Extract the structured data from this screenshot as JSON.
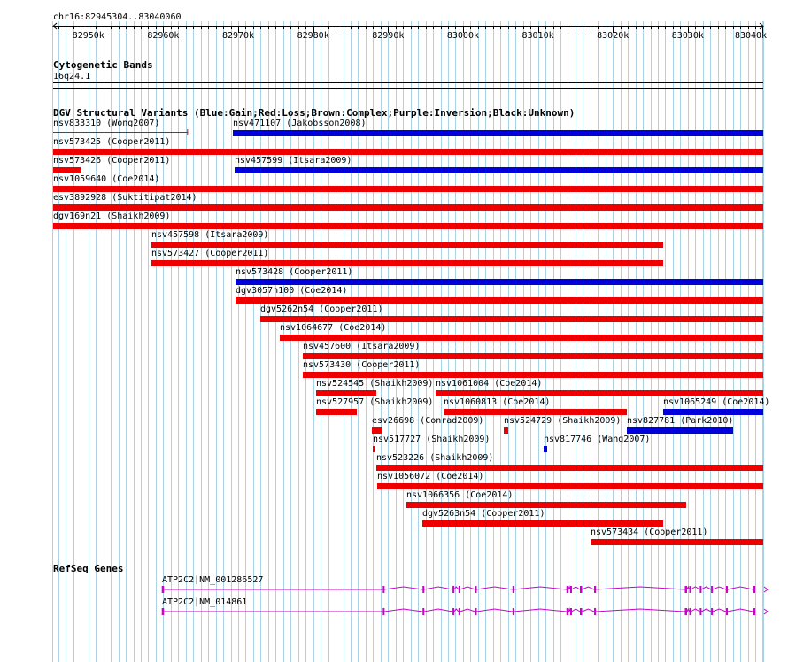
{
  "colors": {
    "gain": "#0000dd",
    "loss": "#ee0000",
    "grid": "#aad4e6",
    "gene": "#cc00cc",
    "background": "#ffffff",
    "text": "#000000"
  },
  "ruler": {
    "range_label": "chr16:82945304..83040060",
    "start": 82945304,
    "end": 83040060,
    "ticks": [
      "82950k",
      "82960k",
      "82970k",
      "82980k",
      "82990k",
      "83000k",
      "83010k",
      "83020k",
      "83030k",
      "83040k"
    ]
  },
  "cytoband": {
    "title": "Cytogenetic Bands",
    "band": "16q24.1"
  },
  "dgv": {
    "title": "DGV Structural Variants (Blue:Gain;Red:Loss;Brown:Complex;Purple:Inversion;Black:Unknown)",
    "variants": [
      {
        "label": "nsv833310 (Wong2007)",
        "type": "loss_whisker",
        "start": 82945304,
        "end": 82963300,
        "row": 0
      },
      {
        "label": "nsv471107 (Jakobsson2008)",
        "type": "gain",
        "start": 82969300,
        "end": 83040060,
        "row": 0
      },
      {
        "label": "nsv573425 (Cooper2011)",
        "type": "loss",
        "start": 82945304,
        "end": 83040060,
        "row": 1
      },
      {
        "label": "nsv573426 (Cooper2011)",
        "type": "loss",
        "start": 82945304,
        "end": 82949000,
        "row": 2
      },
      {
        "label": "nsv457599 (Itsara2009)",
        "type": "gain",
        "start": 82969500,
        "end": 83040060,
        "row": 2
      },
      {
        "label": "nsv1059640 (Coe2014)",
        "type": "loss",
        "start": 82945304,
        "end": 83040060,
        "row": 3
      },
      {
        "label": "esv3892928 (Suktitipat2014)",
        "type": "loss",
        "start": 82945304,
        "end": 83040060,
        "row": 4
      },
      {
        "label": "dgv169n21 (Shaikh2009)",
        "type": "loss",
        "start": 82945304,
        "end": 83040060,
        "row": 5
      },
      {
        "label": "nsv457598 (Itsara2009)",
        "type": "loss",
        "start": 82958400,
        "end": 83026700,
        "row": 6
      },
      {
        "label": "nsv573427 (Cooper2011)",
        "type": "loss",
        "start": 82958400,
        "end": 83026700,
        "row": 7
      },
      {
        "label": "nsv573428 (Cooper2011)",
        "type": "gain",
        "start": 82969600,
        "end": 83040060,
        "row": 8
      },
      {
        "label": "dgv3057n100 (Coe2014)",
        "type": "loss",
        "start": 82969600,
        "end": 83040060,
        "row": 9
      },
      {
        "label": "dgv5262n54 (Cooper2011)",
        "type": "loss",
        "start": 82973000,
        "end": 83040060,
        "row": 10
      },
      {
        "label": "nsv1064677 (Coe2014)",
        "type": "loss",
        "start": 82975600,
        "end": 83040060,
        "row": 11
      },
      {
        "label": "nsv457600 (Itsara2009)",
        "type": "loss",
        "start": 82978600,
        "end": 83040060,
        "row": 12
      },
      {
        "label": "nsv573430 (Cooper2011)",
        "type": "loss",
        "start": 82978600,
        "end": 83040060,
        "row": 13
      },
      {
        "label": "nsv524545 (Shaikh2009)",
        "type": "loss",
        "start": 82980400,
        "end": 82988400,
        "row": 14
      },
      {
        "label": "nsv1061004 (Coe2014)",
        "type": "loss",
        "start": 82996400,
        "end": 83040060,
        "row": 14
      },
      {
        "label": "nsv527957 (Shaikh2009)",
        "type": "loss",
        "start": 82980400,
        "end": 82985800,
        "row": 15
      },
      {
        "label": "nsv1060813 (Coe2014)",
        "type": "loss",
        "start": 82997400,
        "end": 83021900,
        "row": 15
      },
      {
        "label": "nsv1065249 (Coe2014)",
        "type": "gain",
        "start": 83026700,
        "end": 83040060,
        "row": 15
      },
      {
        "label": "esv26698 (Conrad2009)",
        "type": "loss",
        "start": 82987800,
        "end": 82989200,
        "row": 16
      },
      {
        "label": "nsv524729 (Shaikh2009)",
        "type": "loss",
        "start": 83005400,
        "end": 83006000,
        "row": 16
      },
      {
        "label": "nsv827781 (Park2010)",
        "type": "gain",
        "start": 83021900,
        "end": 83036100,
        "row": 16
      },
      {
        "label": "nsv517727 (Shaikh2009)",
        "type": "loss",
        "start": 82987900,
        "end": 82988100,
        "row": 17
      },
      {
        "label": "nsv817746 (Wang2007)",
        "type": "gain",
        "start": 83010800,
        "end": 83011300,
        "row": 17
      },
      {
        "label": "nsv523226 (Shaikh2009)",
        "type": "loss",
        "start": 82988400,
        "end": 83040060,
        "row": 18
      },
      {
        "label": "nsv1056072 (Coe2014)",
        "type": "loss",
        "start": 82988600,
        "end": 83040060,
        "row": 19
      },
      {
        "label": "nsv1066356 (Coe2014)",
        "type": "loss",
        "start": 82992400,
        "end": 83029700,
        "row": 20
      },
      {
        "label": "dgv5263n54 (Cooper2011)",
        "type": "loss",
        "start": 82994600,
        "end": 83026700,
        "row": 21
      },
      {
        "label": "nsv573434 (Cooper2011)",
        "type": "loss",
        "start": 83017000,
        "end": 83040060,
        "row": 22
      }
    ]
  },
  "refseq": {
    "title": "RefSeq Genes",
    "transcripts": [
      {
        "label": "ATP2C2|NM_001286527",
        "start": 82959800,
        "end": 83040060,
        "exons": [
          [
            82959800,
            82960100
          ],
          [
            82989300,
            82989500
          ],
          [
            82994600,
            82994800
          ],
          [
            82998600,
            82998800
          ],
          [
            82999400,
            82999600
          ],
          [
            83001600,
            83001800
          ],
          [
            83006600,
            83006800
          ],
          [
            83013800,
            83014100
          ],
          [
            83014300,
            83014500
          ],
          [
            83015600,
            83015900
          ],
          [
            83017500,
            83017700
          ],
          [
            83029600,
            83029900
          ],
          [
            83030200,
            83030400
          ],
          [
            83031600,
            83031800
          ],
          [
            83033100,
            83033300
          ],
          [
            83035100,
            83035300
          ],
          [
            83038700,
            83039000
          ]
        ]
      },
      {
        "label": "ATP2C2|NM_014861",
        "start": 82959800,
        "end": 83040060,
        "exons": [
          [
            82959800,
            82960100
          ],
          [
            82989300,
            82989500
          ],
          [
            82994600,
            82994800
          ],
          [
            82998600,
            82998800
          ],
          [
            82999400,
            82999600
          ],
          [
            83001600,
            83001800
          ],
          [
            83006600,
            83006800
          ],
          [
            83013800,
            83014100
          ],
          [
            83014300,
            83014500
          ],
          [
            83015600,
            83015900
          ],
          [
            83017500,
            83017700
          ],
          [
            83029600,
            83029900
          ],
          [
            83030200,
            83030400
          ],
          [
            83031600,
            83031800
          ],
          [
            83033100,
            83033300
          ],
          [
            83035100,
            83035300
          ],
          [
            83038700,
            83039000
          ]
        ]
      }
    ]
  }
}
